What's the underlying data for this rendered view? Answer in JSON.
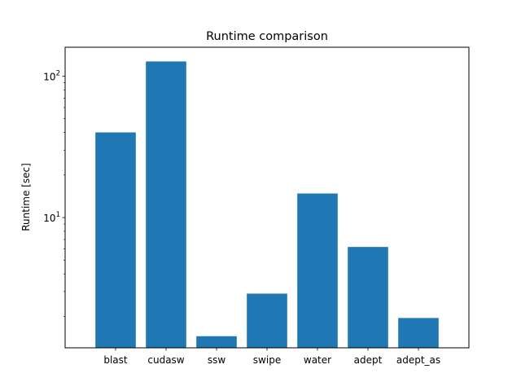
{
  "chart_data": {
    "type": "bar",
    "title": "Runtime comparison",
    "xlabel": "",
    "ylabel": "Runtime [sec]",
    "yscale": "log",
    "ylim": [
      1.2,
      160
    ],
    "categories": [
      "blast",
      "cudasw",
      "ssw",
      "swipe",
      "water",
      "adept",
      "adept_as"
    ],
    "values": [
      40,
      127,
      1.45,
      2.9,
      14.8,
      6.2,
      1.95
    ],
    "y_major_ticks": [
      {
        "value": 10,
        "label_base": "10",
        "label_exp": "1"
      },
      {
        "value": 100,
        "label_base": "10",
        "label_exp": "2"
      }
    ],
    "bar_color": "#1f77b4",
    "grid": false,
    "legend": "none"
  }
}
